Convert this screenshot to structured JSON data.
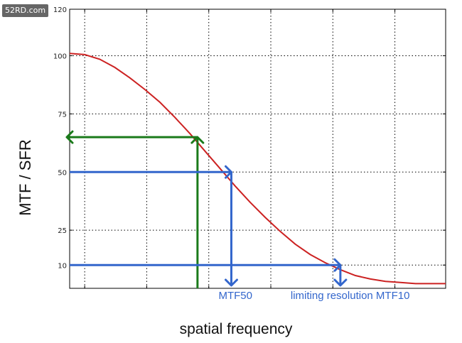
{
  "watermark": "52RD.com",
  "chart_data": {
    "type": "line",
    "xlabel": "spatial frequency",
    "ylabel": "MTF / SFR",
    "ylim": [
      0,
      120
    ],
    "y_ticks": [
      10,
      25,
      50,
      75,
      100,
      120
    ],
    "xlim": [
      0,
      1
    ],
    "grid": true,
    "series": [
      {
        "color": "#cc2222",
        "x": [
          0.0,
          0.04,
          0.08,
          0.12,
          0.16,
          0.2,
          0.24,
          0.28,
          0.32,
          0.36,
          0.4,
          0.44,
          0.48,
          0.52,
          0.56,
          0.6,
          0.64,
          0.68,
          0.72,
          0.76,
          0.8,
          0.84,
          0.88,
          0.92,
          0.96,
          1.0
        ],
        "values": [
          101,
          100.5,
          98.5,
          95,
          90.5,
          85.5,
          80,
          73.5,
          66.5,
          59,
          51.5,
          44,
          37,
          30.5,
          24.5,
          19,
          14.5,
          11,
          8,
          5.5,
          4,
          3,
          2.5,
          2,
          2,
          2
        ]
      }
    ],
    "annotations": [
      {
        "color": "#1a7a1a",
        "from_x": 0.34,
        "value": 65,
        "points_to": "y-axis"
      },
      {
        "label": "MTF50",
        "color": "#3366cc",
        "value": 50,
        "x": 0.43
      },
      {
        "label": "limiting resolution MTF10",
        "color": "#3366cc",
        "value": 10,
        "x": 0.72
      }
    ]
  }
}
